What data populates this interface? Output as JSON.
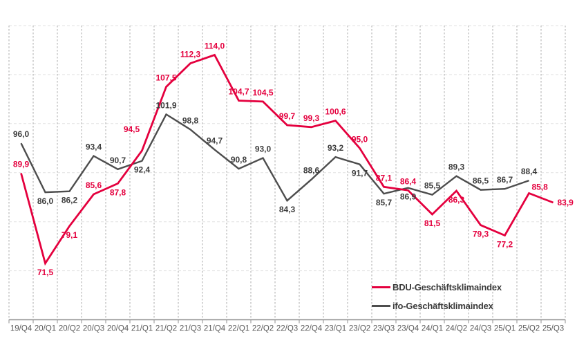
{
  "chart_data": {
    "type": "line",
    "title": "",
    "xlabel": "",
    "ylabel": "",
    "categories": [
      "19/Q4",
      "20/Q1",
      "20/Q2",
      "20/Q3",
      "20/Q4",
      "21/Q1",
      "21/Q2",
      "21/Q3",
      "21/Q4",
      "22/Q1",
      "22/Q2",
      "22/Q3",
      "22/Q4",
      "23/Q1",
      "23/Q2",
      "23/Q3",
      "23/Q4",
      "24/Q1",
      "24/Q2",
      "24/Q3",
      "25/Q1",
      "25/Q2",
      "25/Q3"
    ],
    "ylim": [
      60,
      120
    ],
    "y_grid_step": 10,
    "grid": {
      "horizontal": "dashed",
      "vertical": "dashed",
      "y_axis_labels": "hidden"
    },
    "legend_position": "inside-bottom-right",
    "series": [
      {
        "name": "BDU-Geschäftsklimaindex",
        "color": "#e4003e",
        "label_color": "#e4003e",
        "values": [
          89.9,
          71.5,
          79.1,
          85.6,
          87.8,
          94.5,
          107.5,
          112.3,
          114.0,
          104.7,
          104.5,
          99.7,
          99.3,
          100.6,
          95.0,
          87.1,
          86.4,
          81.5,
          86.3,
          79.3,
          77.2,
          85.8,
          83.9
        ],
        "point_labels": [
          "89,9",
          "71,5",
          "79,1",
          "85,6",
          "87,8",
          "94,5",
          "107,5",
          "112,3",
          "114,0",
          "104,7",
          "104,5",
          "99,7",
          "99,3",
          "100,6",
          "95,0",
          "87,1",
          "86,4",
          "81,5",
          "86,3",
          "79,3",
          "77,2",
          "85,8",
          "83,9"
        ],
        "label_positions": [
          "above",
          "below",
          "below",
          "above",
          "below",
          "above-left",
          "above",
          "above",
          "above",
          "above",
          "above",
          "above",
          "above",
          "above",
          "above",
          "above",
          "above",
          "below",
          "below",
          "below",
          "below",
          "above-right",
          "right"
        ]
      },
      {
        "name": "ifo-Geschäftsklimaindex",
        "color": "#4d4d4d",
        "label_color": "#3d3d3d",
        "values": [
          96.0,
          86.0,
          86.2,
          93.4,
          90.7,
          92.4,
          101.9,
          98.8,
          94.7,
          90.8,
          93.0,
          84.3,
          88.6,
          93.2,
          91.7,
          85.7,
          86.9,
          85.5,
          89.3,
          86.5,
          86.7,
          88.4
        ],
        "point_labels": [
          "96,0",
          "86,0",
          "86,2",
          "93,4",
          "90,7",
          "92,4",
          "101,9",
          "98,8",
          "94,7",
          "90,8",
          "93,0",
          "84,3",
          "88,6",
          "93,2",
          "91,7",
          "85,7",
          "86,9",
          "85,5",
          "89,3",
          "86,5",
          "86,7",
          "88,4"
        ],
        "label_positions": [
          "above",
          "below",
          "below",
          "above",
          "above",
          "below",
          "above",
          "above",
          "above",
          "above",
          "above",
          "below",
          "above",
          "above",
          "below",
          "below",
          "below",
          "above",
          "above",
          "above",
          "above",
          "above"
        ]
      }
    ]
  }
}
